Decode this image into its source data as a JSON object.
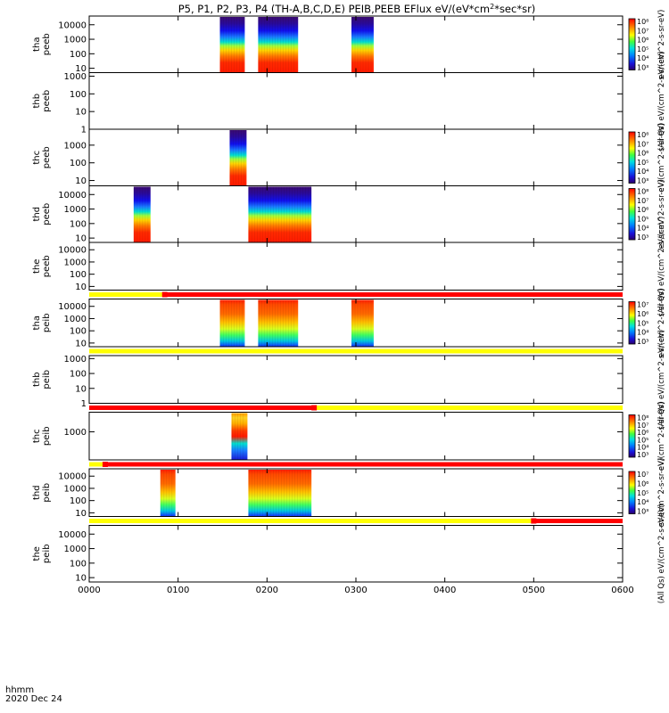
{
  "chart_data": {
    "type": "heatmap",
    "title": "P5, P1, P2, P3, P4 (TH-A,B,C,D,E) PEIB,PEEB EFlux eV/(eV*cm",
    "title_sup": "2",
    "title_tail": "*sec*sr)",
    "x_axis": {
      "range_hours": [
        0,
        6
      ],
      "ticks": [
        {
          "hour": 0,
          "label": "0000"
        },
        {
          "hour": 1,
          "label": "0100"
        },
        {
          "hour": 2,
          "label": "0200"
        },
        {
          "hour": 3,
          "label": "0300"
        },
        {
          "hour": 4,
          "label": "0400"
        },
        {
          "hour": 5,
          "label": "0500"
        },
        {
          "hour": 6,
          "label": "0600"
        }
      ],
      "unit_label": "hhmm",
      "date_label": "2020 Dec 24"
    },
    "colorbar_unit": "eV/(cm^2-s-sr-eV)",
    "colorbar_prefix": "(All Qs)",
    "panels": [
      {
        "id": "tha-peeb",
        "label": [
          "tha",
          "peeb"
        ],
        "yticks": [
          "10000",
          "1000",
          "100",
          "10"
        ],
        "ylog": [
          0.7,
          4.6
        ],
        "colorbar": {
          "show": true,
          "ticks": [
            "10⁸",
            "10⁷",
            "10⁶",
            "10⁵",
            "10⁴",
            "10³"
          ],
          "unit": "eV/(cm^2-s-sr-eV)"
        },
        "blocks": [
          {
            "t": [
              1.47,
              1.75
            ]
          },
          {
            "t": [
              1.9,
              2.35
            ]
          },
          {
            "t": [
              2.95,
              3.2
            ]
          }
        ],
        "style": "electron"
      },
      {
        "id": "thb-peeb",
        "label": [
          "thb",
          "peeb"
        ],
        "yticks": [
          "1000",
          "100",
          "10",
          "1"
        ],
        "ylog": [
          0,
          3.2
        ],
        "colorbar": {
          "show": false
        },
        "blocks": [],
        "style": "none"
      },
      {
        "id": "thc-peeb",
        "label": [
          "thc",
          "peeb"
        ],
        "yticks": [
          "1000",
          "100",
          "10"
        ],
        "ylog": [
          0.7,
          3.9
        ],
        "colorbar": {
          "show": true,
          "ticks": [
            "10⁸",
            "10⁷",
            "10⁶",
            "10⁵",
            "10⁴",
            "10³"
          ],
          "unit": "eV/(cm^2-s-sr-eV)"
        },
        "blocks": [
          {
            "t": [
              1.58,
              1.77
            ]
          }
        ],
        "style": "electron"
      },
      {
        "id": "thd-peeb",
        "label": [
          "thd",
          "peeb"
        ],
        "yticks": [
          "10000",
          "1000",
          "100",
          "10"
        ],
        "ylog": [
          0.7,
          4.6
        ],
        "colorbar": {
          "show": true,
          "ticks": [
            "10⁸",
            "10⁷",
            "10⁶",
            "10⁵",
            "10⁴",
            "10³"
          ],
          "unit": "eV/(cm^2-s-sr-eV)"
        },
        "blocks": [
          {
            "t": [
              0.5,
              0.69
            ]
          },
          {
            "t": [
              1.79,
              2.5
            ]
          }
        ],
        "style": "electron"
      },
      {
        "id": "the-peeb",
        "label": [
          "the",
          "peeb"
        ],
        "yticks": [
          "10000",
          "1000",
          "100",
          "10"
        ],
        "ylog": [
          0.7,
          4.6
        ],
        "colorbar": {
          "show": false
        },
        "blocks": [],
        "style": "none",
        "bar_below": {
          "yellow_until": 0.85
        }
      },
      {
        "id": "tha-peib",
        "label": [
          "tha",
          "peib"
        ],
        "yticks": [
          "10000",
          "1000",
          "100",
          "10"
        ],
        "ylog": [
          0.7,
          4.6
        ],
        "colorbar": {
          "show": true,
          "ticks": [
            "10⁷",
            "10⁶",
            "10⁵",
            "10⁴",
            "10³"
          ],
          "unit": "eV/(cm^2-s-sr-eV)"
        },
        "blocks": [
          {
            "t": [
              1.47,
              1.75
            ]
          },
          {
            "t": [
              1.9,
              2.35
            ]
          },
          {
            "t": [
              2.95,
              3.2
            ]
          }
        ],
        "style": "ion",
        "bar_below": {
          "yellow_until": 6.0
        }
      },
      {
        "id": "thb-peib",
        "label": [
          "thb",
          "peib"
        ],
        "yticks": [
          "1000",
          "100",
          "10",
          "1"
        ],
        "ylog": [
          0,
          3.2
        ],
        "colorbar": {
          "show": false
        },
        "blocks": [],
        "style": "none",
        "bar_below": {
          "red_until": 2.53
        }
      },
      {
        "id": "thc-peib",
        "label": [
          "thc",
          "peib"
        ],
        "yticks": [
          "1000"
        ],
        "ylog": [
          2.0,
          3.7
        ],
        "colorbar": {
          "show": true,
          "ticks": [
            "10⁸",
            "10⁷",
            "10⁶",
            "10⁵",
            "10⁴",
            "10³"
          ],
          "unit": "eV/(cm^2-s-sr-eV)"
        },
        "blocks": [
          {
            "t": [
              1.6,
              1.78
            ]
          }
        ],
        "style": "ion-c",
        "bar_below": {
          "yellow_until": 0.18
        }
      },
      {
        "id": "thd-peib",
        "label": [
          "thd",
          "peib"
        ],
        "yticks": [
          "10000",
          "1000",
          "100",
          "10"
        ],
        "ylog": [
          0.7,
          4.6
        ],
        "colorbar": {
          "show": true,
          "ticks": [
            "10⁷",
            "10⁶",
            "10⁵",
            "10⁴",
            "10³"
          ],
          "unit": "eV/(cm^2-s-sr-eV)"
        },
        "blocks": [
          {
            "t": [
              0.8,
              0.97
            ]
          },
          {
            "t": [
              1.79,
              2.5
            ]
          }
        ],
        "style": "ion",
        "bar_below": {
          "yellow_until": 5.0
        }
      },
      {
        "id": "the-peib",
        "label": [
          "the",
          "peib"
        ],
        "yticks": [
          "10000",
          "1000",
          "100",
          "10"
        ],
        "ylog": [
          0.7,
          4.6
        ],
        "colorbar": {
          "show": false
        },
        "blocks": [],
        "style": "none"
      }
    ]
  }
}
